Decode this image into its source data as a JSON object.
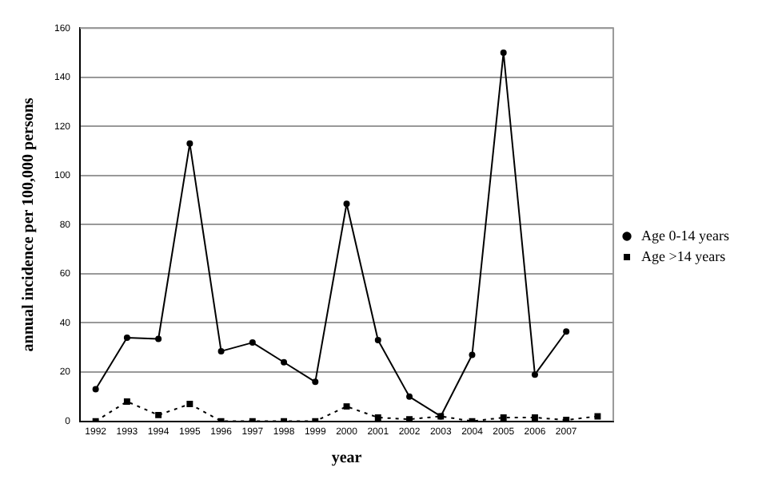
{
  "chart_data": {
    "type": "line",
    "xlabel": "year",
    "ylabel": "annual incidence per 100,000 persons",
    "categories": [
      "1992",
      "1993",
      "1994",
      "1995",
      "1996",
      "1997",
      "1998",
      "1999",
      "2000",
      "2001",
      "2002",
      "2003",
      "2004",
      "2005",
      "2006",
      "2007",
      null
    ],
    "series": [
      {
        "name": "Age 0-14 years",
        "color": "#000000",
        "marker": "circle",
        "line_style": "solid",
        "values": [
          13,
          34,
          33.5,
          113,
          28.5,
          32,
          24,
          16,
          88.5,
          33,
          10,
          2,
          27,
          150,
          19,
          36.5,
          null
        ]
      },
      {
        "name": "Age >14 years",
        "color": "#000000",
        "marker": "square",
        "line_style": "dotted",
        "values": [
          0,
          8,
          2.5,
          7,
          0,
          0,
          0,
          0,
          6,
          1.5,
          0.8,
          2,
          0,
          1.5,
          1.5,
          0.5,
          2
        ]
      }
    ],
    "ylim": [
      0,
      160
    ],
    "yticks": [
      0,
      20,
      40,
      60,
      80,
      100,
      120,
      140,
      160
    ],
    "grid": "y",
    "legend": "right"
  }
}
